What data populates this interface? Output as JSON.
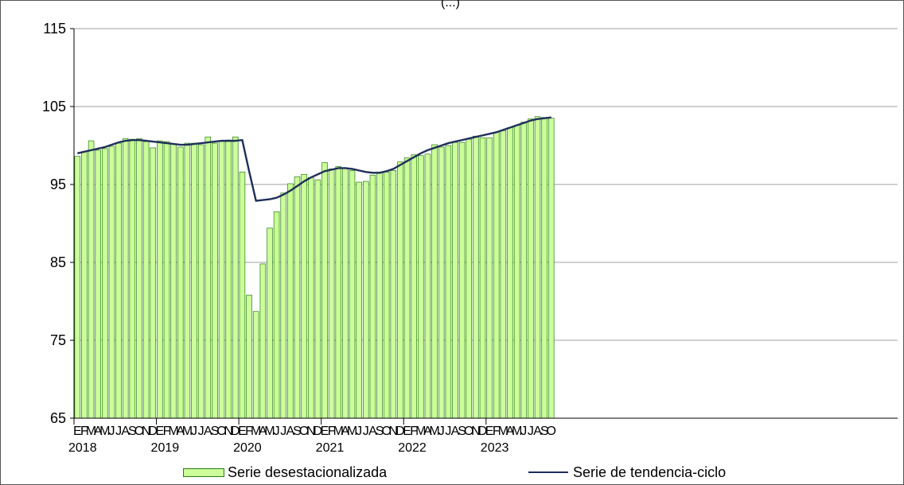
{
  "chart_data": {
    "type": "bar",
    "title": "(...)",
    "ylim": [
      65,
      115
    ],
    "yticks": [
      65,
      75,
      85,
      95,
      105,
      115
    ],
    "grid": true,
    "month_letters": [
      "E",
      "F",
      "M",
      "A",
      "M",
      "J",
      "J",
      "A",
      "S",
      "O",
      "N",
      "D"
    ],
    "years": [
      "2018",
      "2019",
      "2020",
      "2021",
      "2022",
      "2023"
    ],
    "series": [
      {
        "name": "Serie desestacionalizada",
        "type": "bar",
        "color": "#ccff99",
        "edge_color": "#2a7a1a",
        "values": [
          98.6,
          99.2,
          100.6,
          99.4,
          99.6,
          99.9,
          100.3,
          100.9,
          100.8,
          100.9,
          100.5,
          99.7,
          100.6,
          100.5,
          100.2,
          99.8,
          100.3,
          100.3,
          100.1,
          101.1,
          100.3,
          100.6,
          100.7,
          101.1,
          96.6,
          80.8,
          78.7,
          84.8,
          89.4,
          91.5,
          93.9,
          95.1,
          96.0,
          96.3,
          95.9,
          95.6,
          97.8,
          97.0,
          97.3,
          97.1,
          96.8,
          95.3,
          95.4,
          96.2,
          96.6,
          96.6,
          96.8,
          97.9,
          98.4,
          98.8,
          98.7,
          98.9,
          100.1,
          99.8,
          100.0,
          100.4,
          100.4,
          100.8,
          101.2,
          101.0,
          101.0,
          101.7,
          101.9,
          102.3,
          102.6,
          103.0,
          103.4,
          103.7,
          103.6,
          103.5
        ]
      },
      {
        "name": "Serie de tendencia-ciclo",
        "type": "line",
        "color": "#1f2f5a",
        "values": [
          99.0,
          99.2,
          99.4,
          99.6,
          99.8,
          100.1,
          100.4,
          100.6,
          100.7,
          100.7,
          100.6,
          100.5,
          100.4,
          100.3,
          100.2,
          100.1,
          100.1,
          100.2,
          100.3,
          100.4,
          100.5,
          100.6,
          100.6,
          100.6,
          100.7,
          96.7,
          92.9,
          93.0,
          93.1,
          93.3,
          93.7,
          94.2,
          94.8,
          95.4,
          95.9,
          96.3,
          96.7,
          96.9,
          97.1,
          97.1,
          97.0,
          96.8,
          96.6,
          96.5,
          96.5,
          96.7,
          97.0,
          97.5,
          98.0,
          98.5,
          99.0,
          99.4,
          99.7,
          100.0,
          100.3,
          100.5,
          100.7,
          100.9,
          101.1,
          101.3,
          101.5,
          101.7,
          102.0,
          102.3,
          102.6,
          102.9,
          103.2,
          103.4,
          103.5,
          103.6
        ]
      }
    ]
  }
}
